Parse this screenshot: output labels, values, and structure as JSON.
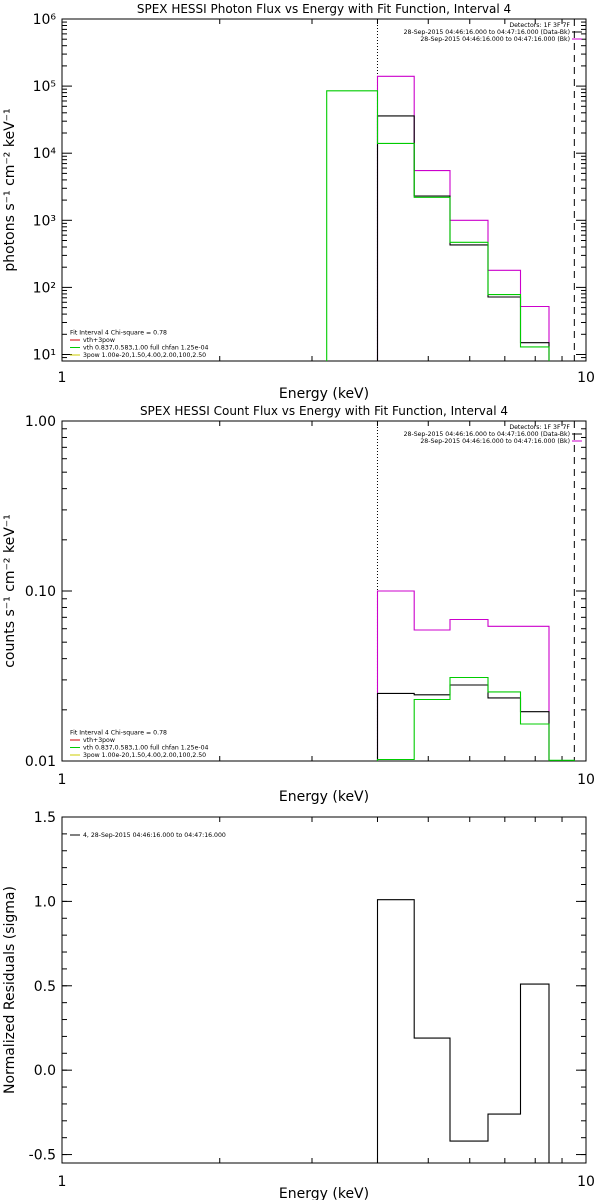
{
  "chart_data": [
    {
      "type": "line",
      "title": "SPEX HESSI Photon Flux vs Energy with Fit Function, Interval 4",
      "xlabel": "Energy (keV)",
      "ylabel": "photons s⁻¹ cm⁻² keV⁻¹",
      "xscale": "log",
      "yscale": "log",
      "xlim": [
        1,
        10
      ],
      "ylim": [
        8,
        1000000
      ],
      "xticks": [
        {
          "value": 1,
          "label": "1"
        },
        {
          "value": 10,
          "label": "10"
        }
      ],
      "yticks": [
        {
          "value": 10,
          "label": "10¹"
        },
        {
          "value": 100,
          "label": "10²"
        },
        {
          "value": 1000,
          "label": "10³"
        },
        {
          "value": 10000,
          "label": "10⁴"
        },
        {
          "value": 100000,
          "label": "10⁵"
        },
        {
          "value": 1000000,
          "label": "10⁶"
        }
      ],
      "vlines": [
        {
          "x": 4.0,
          "style": "dotted"
        },
        {
          "x": 9.5,
          "style": "dashed"
        }
      ],
      "info": [
        "Detectors: 1F 3F 7F",
        "28-Sep-2015 04:46:16.000 to 04:47:16.000 (Data-Bk)",
        "28-Sep-2015 04:46:16.000 to 04:47:16.000 (Bk)"
      ],
      "info_colors": [
        "",
        "#000000",
        "#cc00cc"
      ],
      "legend": [
        "Fit Interval 4   Chi-square = 0.78",
        "vth+3pow",
        "vth 0.837,0.583,1.00  full chfan 1.25e-04",
        "3pow 1.00e-20,1.50,4.00,2.00,100,2.50"
      ],
      "legend_colors": [
        "",
        "#cc0000",
        "#00cc00",
        "#cccc00"
      ],
      "series": [
        {
          "color": "#cc00cc",
          "bins": [
            [
              4.0,
              4.7,
              140000
            ],
            [
              4.7,
              5.5,
              5500
            ],
            [
              5.5,
              6.5,
              1000
            ],
            [
              6.5,
              7.5,
              180
            ],
            [
              7.5,
              8.5,
              52
            ]
          ]
        },
        {
          "color": "#000000",
          "bins": [
            [
              4.0,
              4.7,
              36000
            ],
            [
              4.7,
              5.5,
              2300
            ],
            [
              5.5,
              6.5,
              430
            ],
            [
              6.5,
              7.5,
              72
            ],
            [
              7.5,
              8.5,
              15
            ]
          ]
        },
        {
          "color": "#00cc00",
          "bins": [
            [
              3.2,
              4.0,
              85000
            ],
            [
              4.0,
              4.7,
              14000
            ],
            [
              4.7,
              5.5,
              2200
            ],
            [
              5.5,
              6.5,
              470
            ],
            [
              6.5,
              7.5,
              78
            ],
            [
              7.5,
              8.5,
              13
            ]
          ]
        }
      ]
    },
    {
      "type": "line",
      "title": "SPEX HESSI Count Flux vs Energy with Fit Function, Interval 4",
      "xlabel": "Energy (keV)",
      "ylabel": "counts s⁻¹ cm⁻² keV⁻¹",
      "xscale": "log",
      "yscale": "log",
      "xlim": [
        1,
        10
      ],
      "ylim": [
        0.01,
        1.0
      ],
      "xticks": [
        {
          "value": 1,
          "label": "1"
        },
        {
          "value": 10,
          "label": "10"
        }
      ],
      "yticks": [
        {
          "value": 0.01,
          "label": "0.01"
        },
        {
          "value": 0.1,
          "label": "0.10"
        },
        {
          "value": 1.0,
          "label": "1.00"
        }
      ],
      "vlines": [
        {
          "x": 4.0,
          "style": "dotted"
        },
        {
          "x": 9.5,
          "style": "dashed"
        }
      ],
      "info": [
        "Detectors: 1F 3F 7F",
        "28-Sep-2015 04:46:16.000 to 04:47:16.000 (Data-Bk)",
        "28-Sep-2015 04:46:16.000 to 04:47:16.000 (Bk)"
      ],
      "info_colors": [
        "",
        "#000000",
        "#cc00cc"
      ],
      "legend": [
        "Fit Interval 4   Chi-square = 0.78",
        "vth+3pow",
        "vth 0.837,0.583,1.00  full chfan 1.25e-04",
        "3pow 1.00e-20,1.50,4.00,2.00,100,2.50"
      ],
      "legend_colors": [
        "",
        "#cc0000",
        "#00cc00",
        "#cccc00"
      ],
      "series": [
        {
          "color": "#cc00cc",
          "bins": [
            [
              4.0,
              4.7,
              0.1
            ],
            [
              4.7,
              5.5,
              0.059
            ],
            [
              5.5,
              6.5,
              0.068
            ],
            [
              6.5,
              8.5,
              0.062
            ]
          ]
        },
        {
          "color": "#000000",
          "bins": [
            [
              4.0,
              4.7,
              0.025
            ],
            [
              4.7,
              5.5,
              0.0245
            ],
            [
              5.5,
              6.5,
              0.028
            ],
            [
              6.5,
              7.5,
              0.0235
            ],
            [
              7.5,
              8.5,
              0.0195
            ]
          ]
        },
        {
          "color": "#00cc00",
          "bins": [
            [
              4.0,
              4.7,
              0.0102
            ],
            [
              4.7,
              5.5,
              0.023
            ],
            [
              5.5,
              6.5,
              0.031
            ],
            [
              6.5,
              7.5,
              0.0255
            ],
            [
              7.5,
              8.5,
              0.0165
            ],
            [
              8.5,
              9.5,
              0.0101
            ]
          ]
        }
      ]
    },
    {
      "type": "line",
      "title": "",
      "xlabel": "Energy (keV)",
      "ylabel": "Normalized Residuals (sigma)",
      "xscale": "log",
      "yscale": "linear",
      "xlim": [
        1,
        10
      ],
      "ylim": [
        -0.55,
        1.5
      ],
      "xticks": [
        {
          "value": 1,
          "label": "1"
        },
        {
          "value": 10,
          "label": "10"
        }
      ],
      "yticks": [
        {
          "value": -0.5,
          "label": "-0.5"
        },
        {
          "value": 0.0,
          "label": "0.0"
        },
        {
          "value": 0.5,
          "label": "0.5"
        },
        {
          "value": 1.0,
          "label": "1.0"
        },
        {
          "value": 1.5,
          "label": "1.5"
        }
      ],
      "vlines": [],
      "info": [],
      "info_colors": [],
      "legend": [
        "4, 28-Sep-2015 04:46:16.000 to 04:47:16.000"
      ],
      "legend_colors": [
        "#000000"
      ],
      "series": [
        {
          "color": "#000000",
          "bins": [
            [
              4.0,
              4.7,
              1.01
            ],
            [
              4.7,
              5.5,
              0.19
            ],
            [
              5.5,
              6.5,
              -0.42
            ],
            [
              6.5,
              7.5,
              -0.26
            ],
            [
              7.5,
              8.5,
              0.51
            ]
          ]
        }
      ]
    }
  ]
}
